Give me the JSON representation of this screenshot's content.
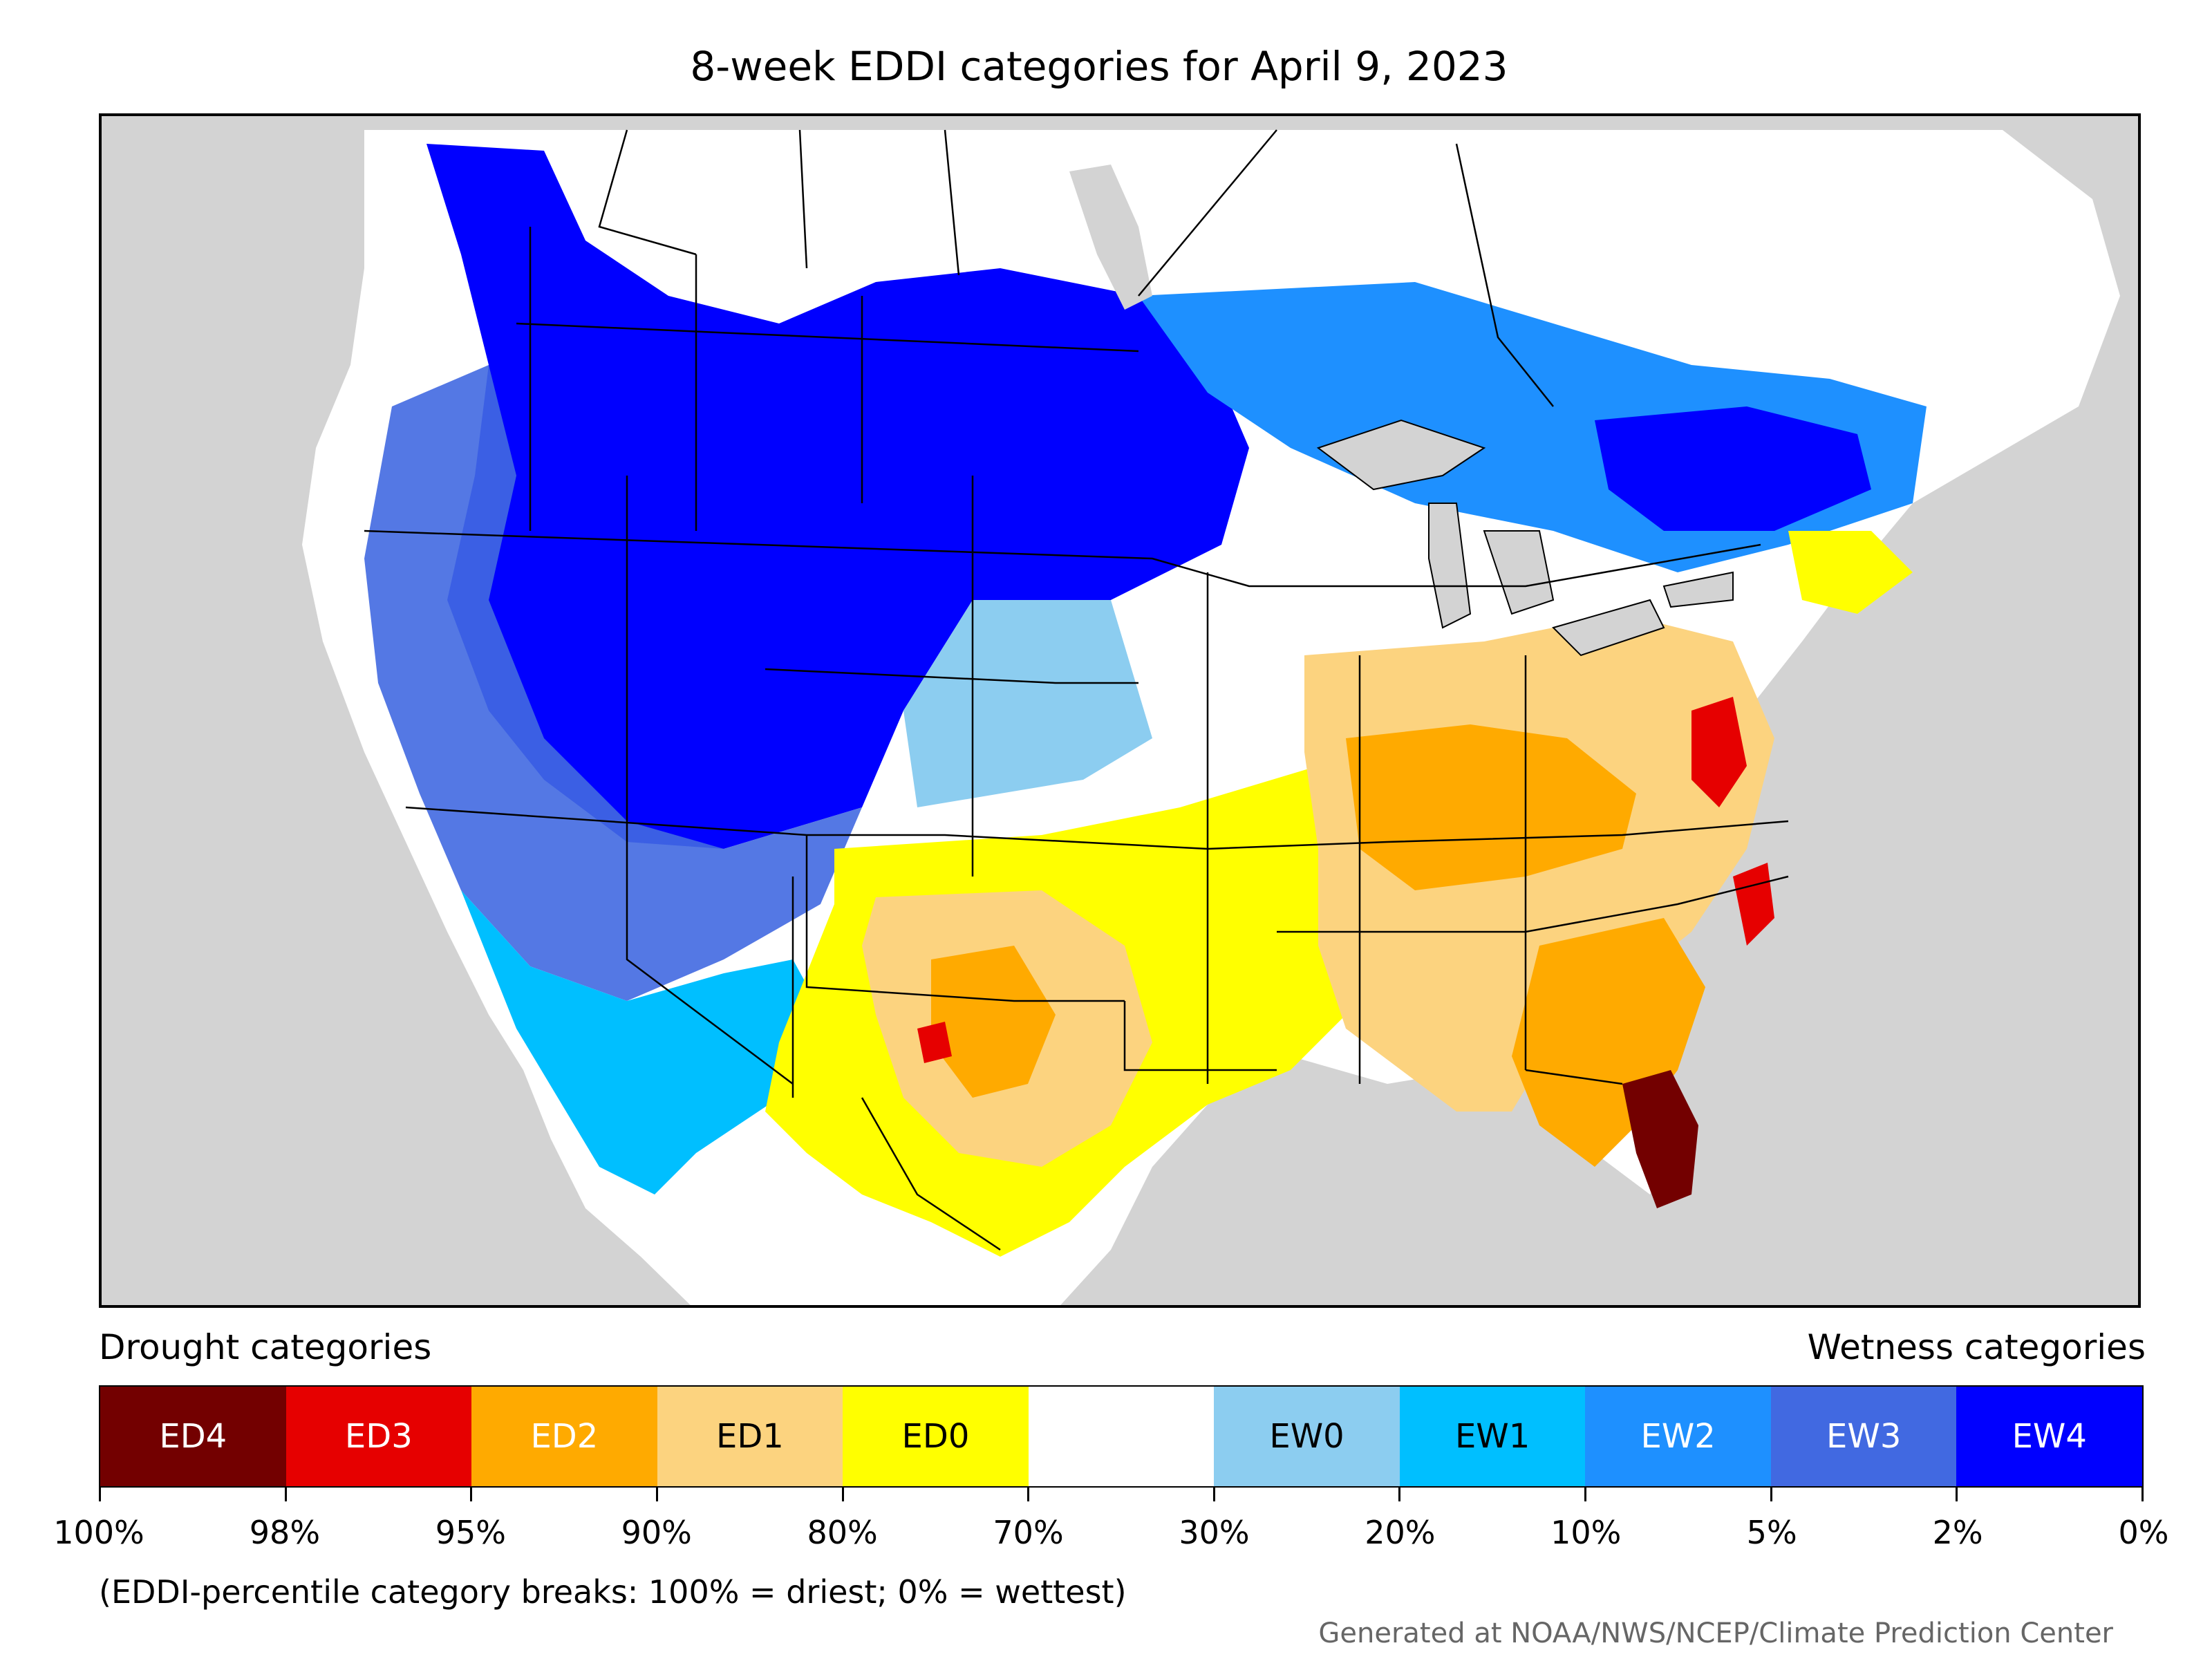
{
  "title": "8-week EDDI categories for April 9, 2023",
  "legend": {
    "left_label": "Drought categories",
    "right_label": "Wetness categories",
    "categories": [
      {
        "label": "ED4",
        "color": "#730000",
        "text_color": "#ffffff"
      },
      {
        "label": "ED3",
        "color": "#e60000",
        "text_color": "#ffffff"
      },
      {
        "label": "ED2",
        "color": "#ffaa00",
        "text_color": "#ffffff"
      },
      {
        "label": "ED1",
        "color": "#fcd37f",
        "text_color": "#000000"
      },
      {
        "label": "ED0",
        "color": "#ffff00",
        "text_color": "#000000"
      },
      {
        "label": "",
        "color": "#ffffff",
        "text_color": "#000000"
      },
      {
        "label": "EW0",
        "color": "#8ccdf0",
        "text_color": "#000000"
      },
      {
        "label": "EW1",
        "color": "#00bfff",
        "text_color": "#000000"
      },
      {
        "label": "EW2",
        "color": "#1e90ff",
        "text_color": "#ffffff"
      },
      {
        "label": "EW3",
        "color": "#4169e1",
        "text_color": "#ffffff"
      },
      {
        "label": "EW4",
        "color": "#0000ff",
        "text_color": "#ffffff"
      }
    ],
    "tick_labels": [
      "100%",
      "98%",
      "95%",
      "90%",
      "80%",
      "70%",
      "30%",
      "20%",
      "10%",
      "5%",
      "2%",
      "0%"
    ]
  },
  "footnote": "(EDDI-percentile category breaks: 100% = driest; 0% = wettest)",
  "credit": "Generated at NOAA/NWS/NCEP/Climate Prediction Center",
  "colors": {
    "ocean": "#d3d3d3",
    "lakes": "#d3d3d3",
    "borders": "#000000"
  }
}
